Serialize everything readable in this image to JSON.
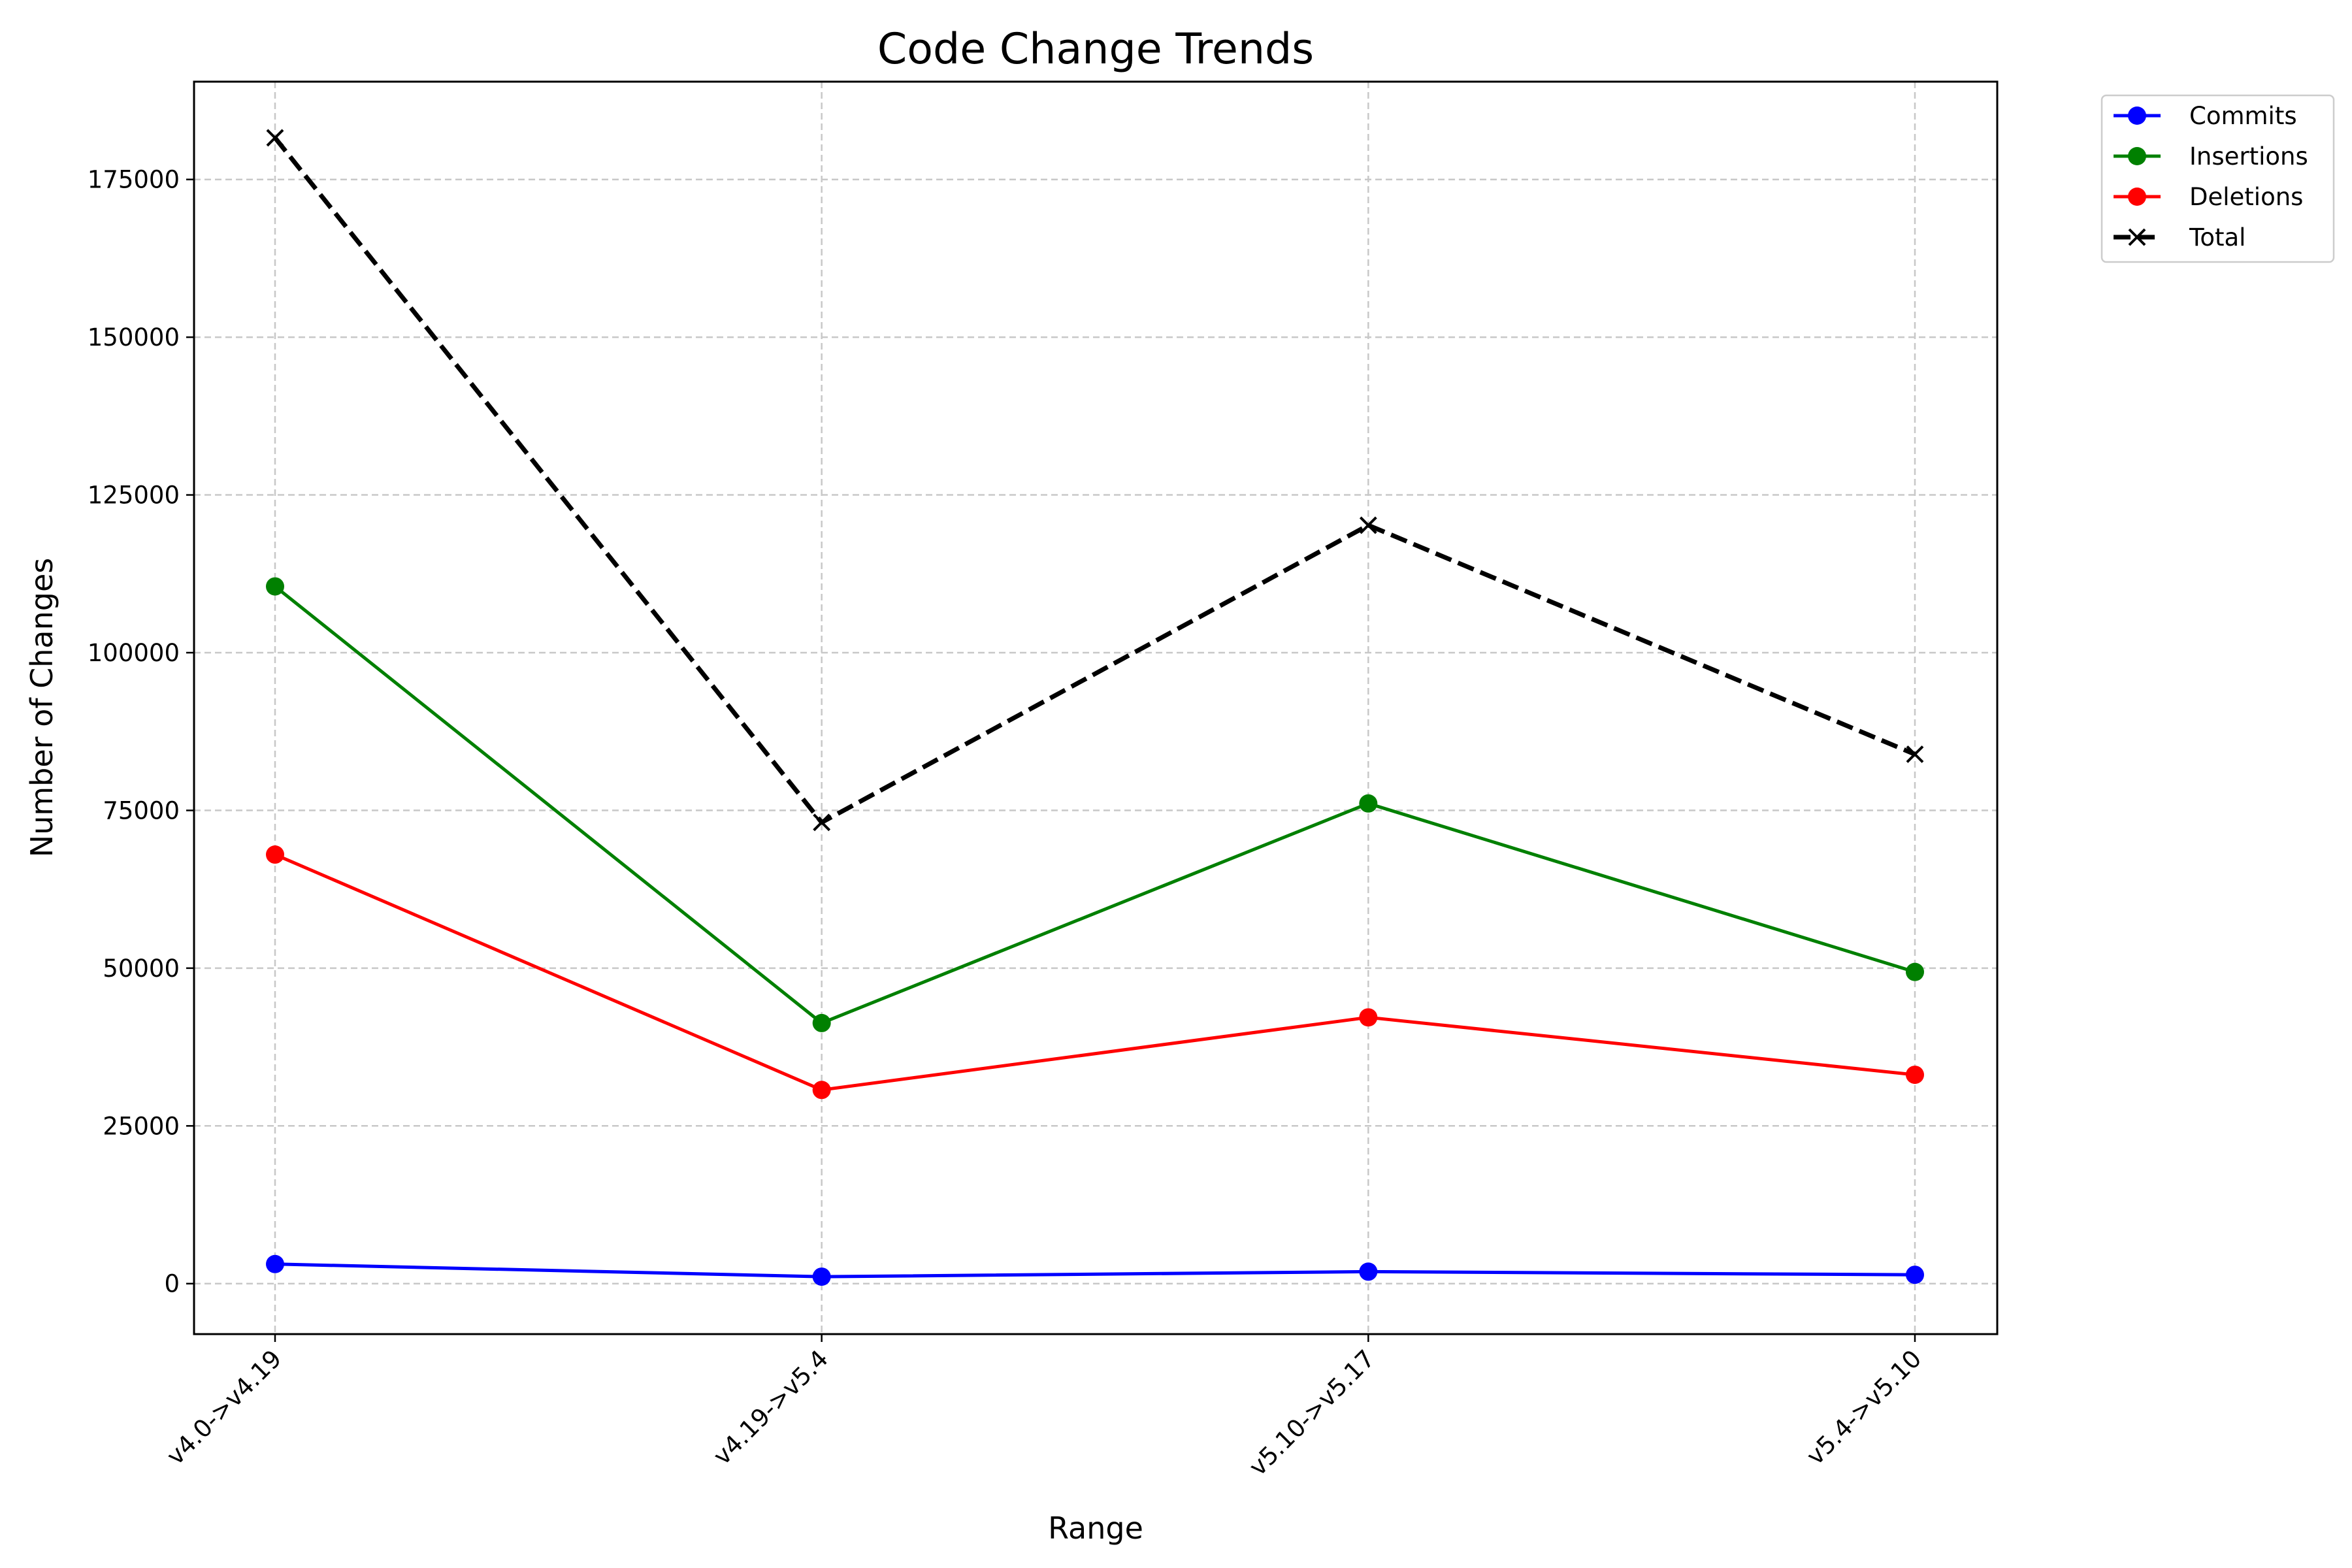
{
  "chart_data": {
    "type": "line",
    "title": "Code Change Trends",
    "xlabel": "Range",
    "ylabel": "Number of Changes",
    "categories": [
      "v4.0->v4.19",
      "v4.19->v5.4",
      "v5.10->v5.17",
      "v5.4->v5.10"
    ],
    "ylim": [
      -8000,
      190500
    ],
    "yticks": [
      0,
      25000,
      50000,
      75000,
      100000,
      125000,
      150000,
      175000
    ],
    "ytick_labels": [
      "0",
      "25000",
      "50000",
      "75000",
      "100000",
      "125000",
      "150000",
      "175000"
    ],
    "grid": true,
    "legend_position": "outside top-right",
    "series": [
      {
        "name": "Commits",
        "values": [
          3100,
          1100,
          1900,
          1400
        ],
        "color": "#0000ff",
        "marker": "circle",
        "linestyle": "solid"
      },
      {
        "name": "Insertions",
        "values": [
          110500,
          41300,
          76100,
          49400
        ],
        "color": "#008000",
        "marker": "circle",
        "linestyle": "solid"
      },
      {
        "name": "Deletions",
        "values": [
          68000,
          30700,
          42200,
          33100
        ],
        "color": "#ff0000",
        "marker": "circle",
        "linestyle": "solid"
      },
      {
        "name": "Total",
        "values": [
          181600,
          73100,
          120200,
          83900
        ],
        "color": "#000000",
        "marker": "x",
        "linestyle": "dashed"
      }
    ]
  }
}
